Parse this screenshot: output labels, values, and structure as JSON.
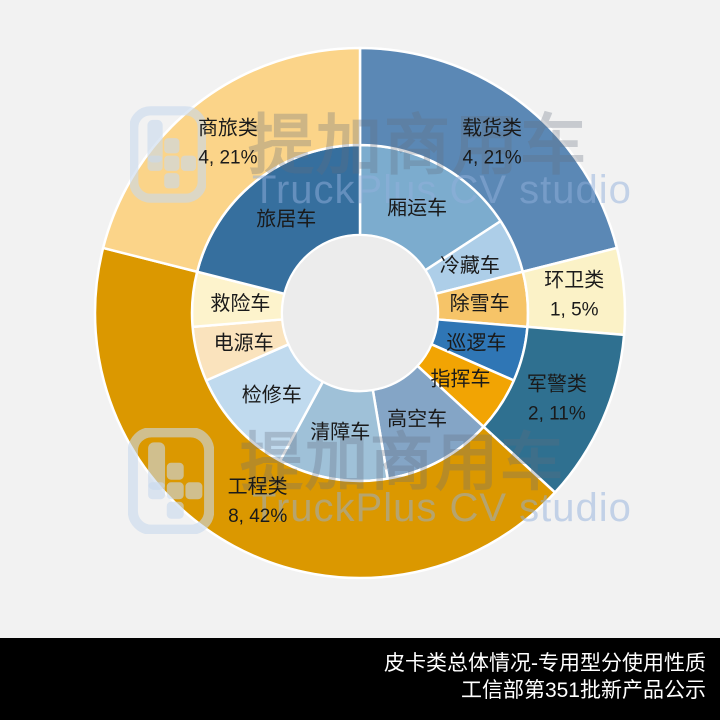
{
  "page": {
    "background": "#F2F2F2"
  },
  "watermark": {
    "brand_cn": "提加商用车",
    "brand_en": "TruckPlus CV studio"
  },
  "footer": {
    "line1": "皮卡类总体情况-专用型分使用性质",
    "line2": "工信部第351批新产品公示",
    "bg": "#000000",
    "text_color": "#FFFFFF"
  },
  "chart_data": {
    "type": "sunburst",
    "title": "皮卡类总体情况-专用型分使用性质",
    "subtitle": "工信部第351批新产品公示",
    "units_total": 19,
    "start": "top",
    "direction": "clockwise",
    "stroke_color": "#FFFFFF",
    "hole_color": "#ECECEC",
    "label_color": "#1A1A1A",
    "rings": [
      {
        "name": "inner",
        "segments": [
          {
            "label": "厢运车",
            "value": 3,
            "color": "#7CACCE"
          },
          {
            "label": "冷藏车",
            "value": 1,
            "color": "#ADCEE8"
          },
          {
            "label": "除雪车",
            "value": 1,
            "color": "#F6C468"
          },
          {
            "label": "巡逻车",
            "value": 1,
            "color": "#2F76B5"
          },
          {
            "label": "指挥车",
            "value": 1,
            "color": "#F2A403"
          },
          {
            "label": "高空车",
            "value": 2,
            "color": "#84A5C6"
          },
          {
            "label": "清障车",
            "value": 2,
            "color": "#9FC1D8"
          },
          {
            "label": "检修车",
            "value": 2,
            "color": "#C0DAEE"
          },
          {
            "label": "电源车",
            "value": 1,
            "color": "#FAE3BD"
          },
          {
            "label": "救险车",
            "value": 1,
            "color": "#FDF3CC"
          },
          {
            "label": "旅居车",
            "value": 4,
            "color": "#366F9E"
          }
        ]
      },
      {
        "name": "outer",
        "segments": [
          {
            "label": "载货类",
            "value": 4,
            "value_label": "4, 21%",
            "color": "#5B88B5"
          },
          {
            "label": "环卫类",
            "value": 1,
            "value_label": "1, 5%",
            "color": "#FBF2C7"
          },
          {
            "label": "军警类",
            "value": 2,
            "value_label": "2, 11%",
            "color": "#2F7090"
          },
          {
            "label": "工程类",
            "value": 8,
            "value_label": "8, 42%",
            "color": "#DB9800"
          },
          {
            "label": "商旅类",
            "value": 4,
            "value_label": "4, 21%",
            "color": "#FBD489"
          }
        ]
      }
    ]
  }
}
